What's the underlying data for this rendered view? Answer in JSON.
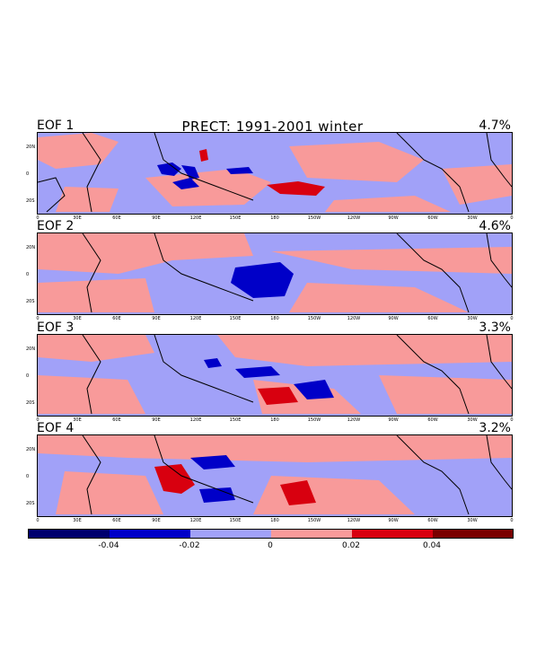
{
  "title": "PRECT: 1991-2001 winter",
  "panels": [
    {
      "label": "EOF 1",
      "pct": "4.7%"
    },
    {
      "label": "EOF 2",
      "pct": "4.6%"
    },
    {
      "label": "EOF 3",
      "pct": "3.3%"
    },
    {
      "label": "EOF 4",
      "pct": "3.2%"
    }
  ],
  "y_ticks": [
    "20N",
    "0",
    "20S"
  ],
  "x_ticks": [
    "0",
    "30E",
    "60E",
    "90E",
    "120E",
    "150E",
    "180",
    "150W",
    "120W",
    "90W",
    "60W",
    "30W",
    "0"
  ],
  "colorbar": {
    "labels": [
      "-0.04",
      "-0.02",
      "0",
      "0.02",
      "0.04"
    ],
    "colors": [
      "#00006e",
      "#0000c8",
      "#a1a1f8",
      "#f89a9a",
      "#d8000f",
      "#7a0000"
    ]
  }
}
